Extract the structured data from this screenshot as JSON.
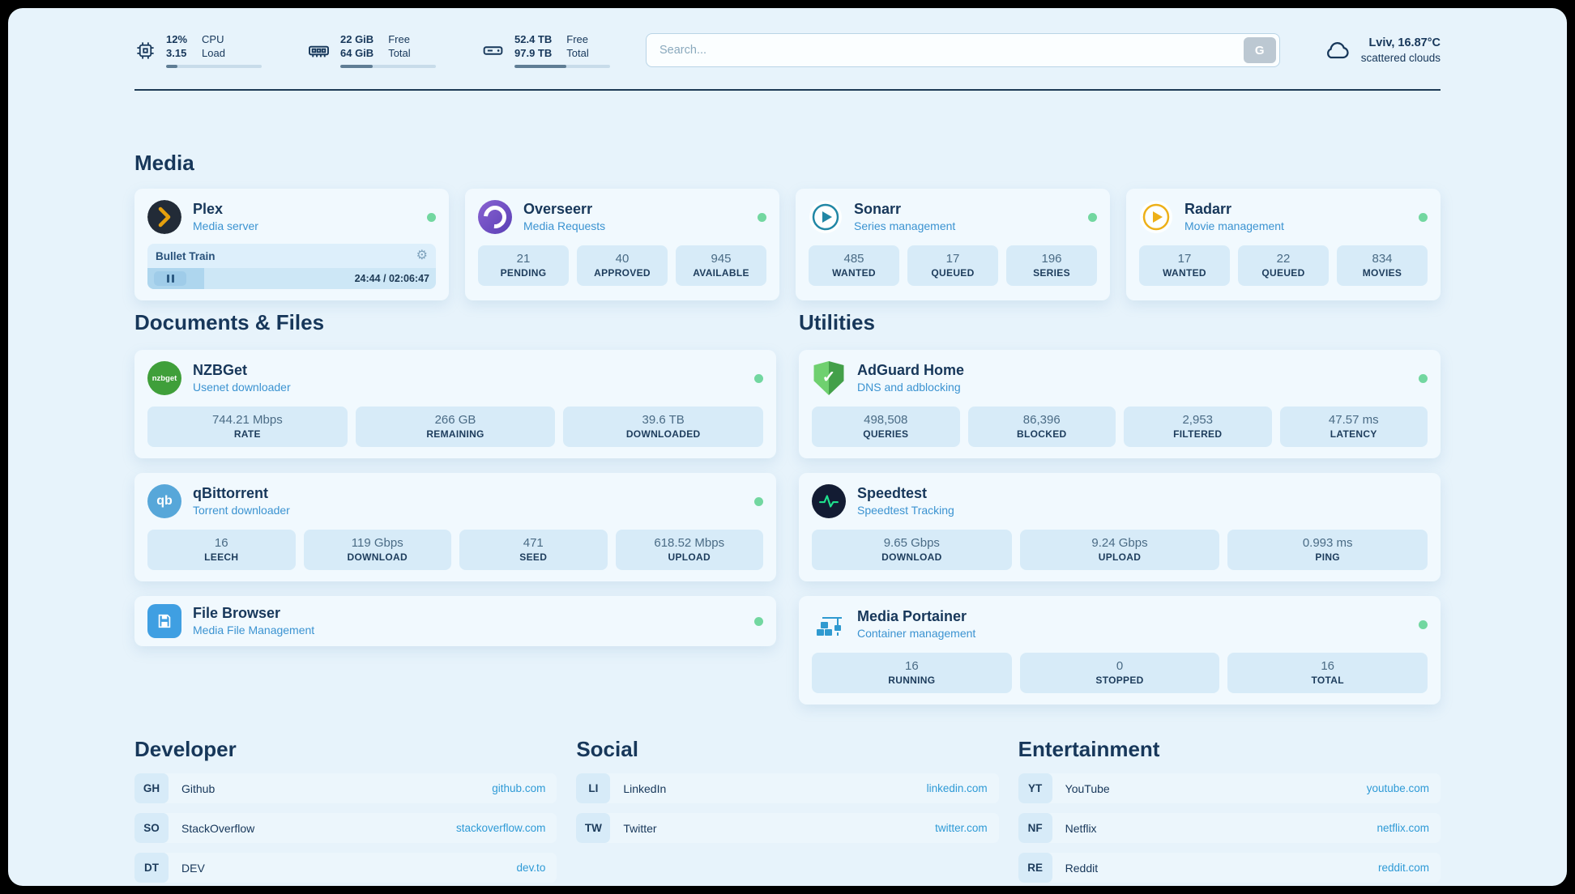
{
  "theme": {
    "background": "#e7f3fb",
    "card": "#f1f9fe",
    "stat_box": "#d7ebf8",
    "heading_text": "#17375a",
    "accent_text": "#3b93d1",
    "link": "#2e9ad6",
    "status_ok": "#72d7a0"
  },
  "icons": {
    "cpu": "chip",
    "memory": "ram-stick",
    "storage": "hard-drive",
    "weather": "cloud",
    "settings": "gear",
    "playback": "pause-bars"
  },
  "header": {
    "metrics": [
      {
        "id": "cpu",
        "values": [
          "12%",
          "3.15"
        ],
        "labels": [
          "CPU",
          "Load"
        ],
        "progress_pct": 12
      },
      {
        "id": "memory",
        "values": [
          "22 GiB",
          "64 GiB"
        ],
        "labels": [
          "Free",
          "Total"
        ],
        "progress_pct": 34
      },
      {
        "id": "storage",
        "values": [
          "52.4 TB",
          "97.9 TB"
        ],
        "labels": [
          "Free",
          "Total"
        ],
        "progress_pct": 54
      }
    ],
    "search": {
      "placeholder": "Search...",
      "provider_button": "G"
    },
    "weather": {
      "location": "Lviv, 16.87°C",
      "condition": "scattered clouds"
    }
  },
  "sections": {
    "media": {
      "title": "Media",
      "plex": {
        "name": "Plex",
        "subtitle": "Media server",
        "now_playing": "Bullet Train",
        "time": "24:44 / 02:06:47",
        "progress_pct": 19.6
      },
      "overseerr": {
        "name": "Overseerr",
        "subtitle": "Media Requests",
        "stats": [
          {
            "value": "21",
            "label": "PENDING"
          },
          {
            "value": "40",
            "label": "APPROVED"
          },
          {
            "value": "945",
            "label": "AVAILABLE"
          }
        ]
      },
      "sonarr": {
        "name": "Sonarr",
        "subtitle": "Series management",
        "stats": [
          {
            "value": "485",
            "label": "WANTED"
          },
          {
            "value": "17",
            "label": "QUEUED"
          },
          {
            "value": "196",
            "label": "SERIES"
          }
        ]
      },
      "radarr": {
        "name": "Radarr",
        "subtitle": "Movie management",
        "stats": [
          {
            "value": "17",
            "label": "WANTED"
          },
          {
            "value": "22",
            "label": "QUEUED"
          },
          {
            "value": "834",
            "label": "MOVIES"
          }
        ]
      }
    },
    "documents": {
      "title": "Documents & Files",
      "nzbget": {
        "name": "NZBGet",
        "subtitle": "Usenet downloader",
        "icon_text": "nzbget",
        "stats": [
          {
            "value": "744.21 Mbps",
            "label": "RATE"
          },
          {
            "value": "266 GB",
            "label": "REMAINING"
          },
          {
            "value": "39.6 TB",
            "label": "DOWNLOADED"
          }
        ]
      },
      "qbittorrent": {
        "name": "qBittorrent",
        "subtitle": "Torrent downloader",
        "icon_text": "qb",
        "stats": [
          {
            "value": "16",
            "label": "LEECH"
          },
          {
            "value": "119 Gbps",
            "label": "DOWNLOAD"
          },
          {
            "value": "471",
            "label": "SEED"
          },
          {
            "value": "618.52 Mbps",
            "label": "UPLOAD"
          }
        ]
      },
      "filebrowser": {
        "name": "File Browser",
        "subtitle": "Media File Management"
      }
    },
    "utilities": {
      "title": "Utilities",
      "adguard": {
        "name": "AdGuard Home",
        "subtitle": "DNS and adblocking",
        "stats": [
          {
            "value": "498,508",
            "label": "QUERIES"
          },
          {
            "value": "86,396",
            "label": "BLOCKED"
          },
          {
            "value": "2,953",
            "label": "FILTERED"
          },
          {
            "value": "47.57 ms",
            "label": "LATENCY"
          }
        ]
      },
      "speedtest": {
        "name": "Speedtest",
        "subtitle": "Speedtest Tracking",
        "stats": [
          {
            "value": "9.65 Gbps",
            "label": "DOWNLOAD"
          },
          {
            "value": "9.24 Gbps",
            "label": "UPLOAD"
          },
          {
            "value": "0.993 ms",
            "label": "PING"
          }
        ]
      },
      "portainer": {
        "name": "Media Portainer",
        "subtitle": "Container management",
        "stats": [
          {
            "value": "16",
            "label": "RUNNING"
          },
          {
            "value": "0",
            "label": "STOPPED"
          },
          {
            "value": "16",
            "label": "TOTAL"
          }
        ]
      }
    }
  },
  "bookmarks": {
    "groups": [
      {
        "title": "Developer",
        "links": [
          {
            "abbr": "GH",
            "name": "Github",
            "url": "github.com"
          },
          {
            "abbr": "SO",
            "name": "StackOverflow",
            "url": "stackoverflow.com"
          },
          {
            "abbr": "DT",
            "name": "DEV",
            "url": "dev.to"
          }
        ]
      },
      {
        "title": "Social",
        "links": [
          {
            "abbr": "LI",
            "name": "LinkedIn",
            "url": "linkedin.com"
          },
          {
            "abbr": "TW",
            "name": "Twitter",
            "url": "twitter.com"
          }
        ]
      },
      {
        "title": "Entertainment",
        "links": [
          {
            "abbr": "YT",
            "name": "YouTube",
            "url": "youtube.com"
          },
          {
            "abbr": "NF",
            "name": "Netflix",
            "url": "netflix.com"
          },
          {
            "abbr": "RE",
            "name": "Reddit",
            "url": "reddit.com"
          }
        ]
      }
    ]
  }
}
